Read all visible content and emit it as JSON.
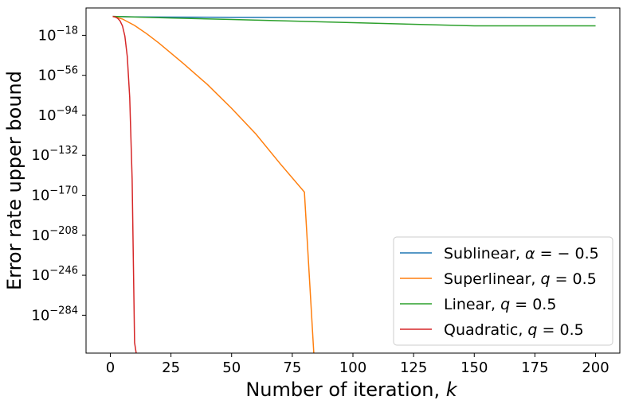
{
  "chart_data": {
    "type": "line",
    "xlabel": "Number of iteration, k",
    "ylabel": "Error rate upper bound",
    "xlim": [
      -10,
      210
    ],
    "ylim_log10": [
      -320,
      8
    ],
    "y_scale": "log",
    "grid": false,
    "legend_position": "lower-right",
    "x_ticks": [
      0,
      25,
      50,
      75,
      100,
      125,
      150,
      175,
      200
    ],
    "y_ticks_exponent": [
      -18,
      -56,
      -94,
      -132,
      -170,
      -208,
      -246,
      -284
    ],
    "y_tick_base": "10",
    "series": [
      {
        "name": "Sublinear, α = −0.5",
        "legend_math": {
          "prefix": "Sublinear, ",
          "var": "α",
          "rest": " = − 0.5"
        },
        "color": "#1f77b4",
        "x": [
          1,
          10,
          25,
          50,
          75,
          100,
          125,
          150,
          175,
          200
        ],
        "log10_y": [
          0,
          -0.5,
          -0.7,
          -0.85,
          -0.94,
          -1.0,
          -1.05,
          -1.09,
          -1.12,
          -1.15
        ]
      },
      {
        "name": "Superlinear, q = 0.5",
        "legend_math": {
          "prefix": "Superlinear, ",
          "var": "q",
          "rest": " = 0.5"
        },
        "color": "#ff7f0e",
        "x": [
          1,
          2,
          5,
          10,
          15,
          20,
          30,
          40,
          50,
          60,
          70,
          80,
          84
        ],
        "log10_y": [
          0,
          -0.6,
          -2.5,
          -8.6,
          -16.5,
          -25.3,
          -44.6,
          -64.7,
          -87.4,
          -111.8,
          -140.0,
          -167.0,
          -325
        ]
      },
      {
        "name": "Linear, q = 0.5",
        "legend_math": {
          "prefix": "Linear, ",
          "var": "q",
          "rest": " = 0.5"
        },
        "color": "#2ca02c",
        "x": [
          1,
          25,
          50,
          100,
          150,
          200
        ],
        "log10_y": [
          0,
          -1.5,
          -3.0,
          -6.0,
          -9.0,
          -9.0
        ]
      },
      {
        "name": "Quadratic, q = 0.5",
        "legend_math": {
          "prefix": "Quadratic, ",
          "var": "q",
          "rest": " = 0.5"
        },
        "color": "#d62728",
        "x": [
          1,
          2,
          3,
          4,
          5,
          6,
          7,
          8,
          9,
          10,
          11,
          12,
          12.3
        ],
        "log10_y": [
          0,
          -0.6,
          -1.8,
          -4.2,
          -9.0,
          -18.7,
          -38.2,
          -77.1,
          -154.8,
          -310.0,
          -325,
          -325,
          -325
        ]
      }
    ]
  }
}
